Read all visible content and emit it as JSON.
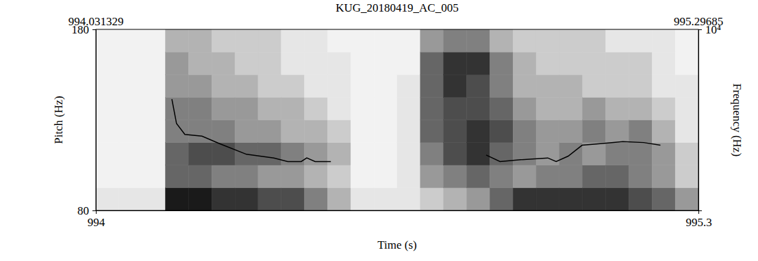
{
  "chart_data": {
    "type": "line",
    "title": "KUG_20180419_AC_005",
    "selection": [
      994.031329,
      995.29685
    ],
    "x_label": "Time (s)",
    "y_label": "Pitch (Hz)",
    "y2_label": "Frequency (Hz)",
    "xlim": [
      994,
      995.3
    ],
    "xticks": [
      994,
      995.3
    ],
    "ylim": [
      80,
      180
    ],
    "yticks": [
      80,
      180
    ],
    "y2lim": [
      0,
      10000
    ],
    "y2ticks": [
      {
        "value": 10000,
        "label": "10⁴"
      }
    ],
    "x": [
      994.164,
      994.174,
      994.192,
      994.229,
      994.266,
      994.325,
      994.384,
      994.414,
      994.443,
      994.455,
      994.473,
      994.507,
      994.67,
      994.842,
      994.872,
      994.916,
      994.975,
      994.993,
      995.019,
      995.049,
      995.093,
      995.137,
      995.182,
      995.218
    ],
    "values": [
      141.5,
      128,
      122,
      121,
      117,
      111,
      109,
      107,
      107,
      109,
      107,
      107,
      null,
      110.6,
      107,
      108,
      109,
      107,
      110,
      116,
      117,
      118,
      117.5,
      116
    ],
    "color": "#000000",
    "spectrogram": {
      "color": "#000000",
      "time_bins": [
        994,
        994.05,
        994.1,
        994.15,
        994.2,
        994.25,
        994.3,
        994.35,
        994.4,
        994.45,
        994.5,
        994.55,
        994.6,
        994.65,
        994.7,
        994.75,
        994.8,
        994.85,
        994.9,
        994.95,
        995,
        995.05,
        995.1,
        995.15,
        995.2,
        995.25,
        995.3
      ],
      "frequency_bins": [
        0,
        1250,
        2500,
        3750,
        5000,
        6250,
        7500,
        8750,
        10000
      ],
      "cells": [
        [
          0.1,
          0.05,
          0.05,
          0.05,
          0.05,
          0.05,
          0.05,
          0.05
        ],
        [
          0.1,
          0.05,
          0.05,
          0.05,
          0.05,
          0.05,
          0.05,
          0.05
        ],
        [
          0.1,
          0.05,
          0.05,
          0.05,
          0.05,
          0.05,
          0.05,
          0.05
        ],
        [
          0.9,
          0.6,
          0.6,
          0.5,
          0.5,
          0.4,
          0.4,
          0.3
        ],
        [
          0.9,
          0.6,
          0.7,
          0.5,
          0.5,
          0.4,
          0.3,
          0.3
        ],
        [
          0.8,
          0.5,
          0.7,
          0.5,
          0.4,
          0.3,
          0.3,
          0.2
        ],
        [
          0.8,
          0.5,
          0.6,
          0.4,
          0.4,
          0.3,
          0.2,
          0.2
        ],
        [
          0.7,
          0.4,
          0.6,
          0.4,
          0.3,
          0.2,
          0.2,
          0.2
        ],
        [
          0.7,
          0.4,
          0.5,
          0.3,
          0.3,
          0.2,
          0.1,
          0.1
        ],
        [
          0.5,
          0.3,
          0.4,
          0.3,
          0.2,
          0.1,
          0.1,
          0.1
        ],
        [
          0.3,
          0.2,
          0.3,
          0.2,
          0.1,
          0.1,
          0.1,
          0.05
        ],
        [
          0.1,
          0.05,
          0.05,
          0.05,
          0.05,
          0.05,
          0.05,
          0.05
        ],
        [
          0.1,
          0.05,
          0.05,
          0.05,
          0.05,
          0.05,
          0.05,
          0.05
        ],
        [
          0.1,
          0.1,
          0.1,
          0.1,
          0.1,
          0.1,
          0.05,
          0.05
        ],
        [
          0.2,
          0.4,
          0.5,
          0.6,
          0.6,
          0.6,
          0.6,
          0.4
        ],
        [
          0.3,
          0.5,
          0.7,
          0.7,
          0.7,
          0.8,
          0.8,
          0.5
        ],
        [
          0.4,
          0.6,
          0.8,
          0.8,
          0.7,
          0.7,
          0.8,
          0.5
        ],
        [
          0.6,
          0.5,
          0.6,
          0.7,
          0.6,
          0.5,
          0.5,
          0.3
        ],
        [
          0.8,
          0.4,
          0.5,
          0.5,
          0.4,
          0.3,
          0.3,
          0.2
        ],
        [
          0.8,
          0.5,
          0.4,
          0.4,
          0.3,
          0.3,
          0.2,
          0.2
        ],
        [
          0.8,
          0.5,
          0.5,
          0.4,
          0.3,
          0.3,
          0.2,
          0.2
        ],
        [
          0.8,
          0.6,
          0.4,
          0.5,
          0.4,
          0.2,
          0.2,
          0.2
        ],
        [
          0.8,
          0.6,
          0.5,
          0.4,
          0.3,
          0.2,
          0.2,
          0.1
        ],
        [
          0.7,
          0.5,
          0.5,
          0.5,
          0.3,
          0.2,
          0.2,
          0.1
        ],
        [
          0.6,
          0.4,
          0.4,
          0.3,
          0.2,
          0.1,
          0.1,
          0.1
        ],
        [
          0.4,
          0.2,
          0.2,
          0.1,
          0.1,
          0.1,
          0.05,
          0.05
        ]
      ]
    }
  }
}
